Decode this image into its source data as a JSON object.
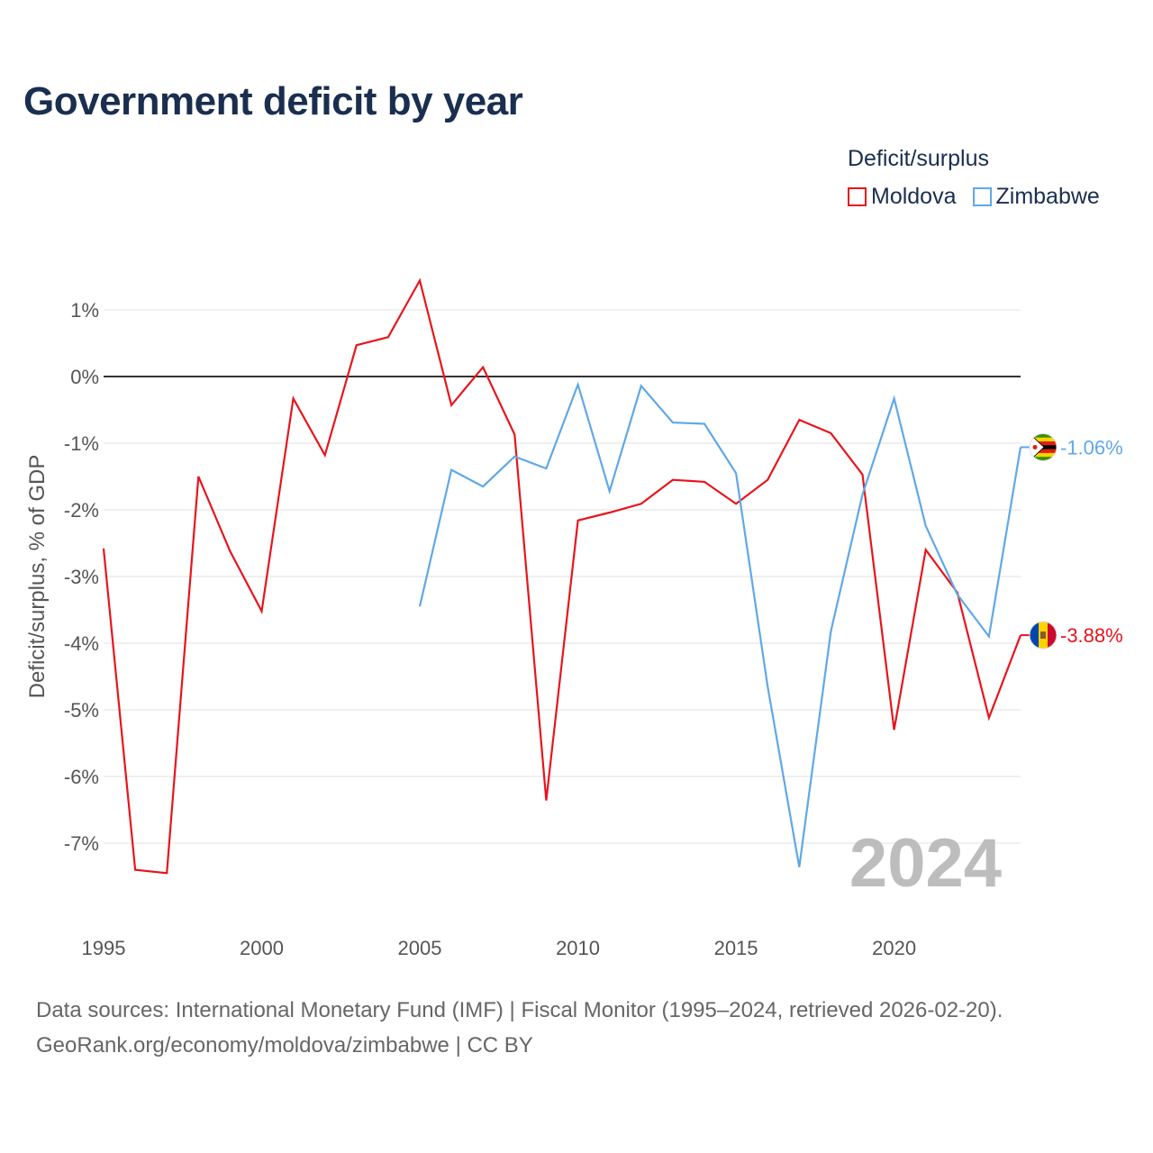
{
  "title": "Government deficit by year",
  "legend": {
    "title": "Deficit/surplus",
    "items": [
      {
        "label": "Moldova",
        "color": "#e8141c"
      },
      {
        "label": "Zimbabwe",
        "color": "#5fa8e8"
      }
    ]
  },
  "footer": {
    "line1": "Data sources: International Monetary Fund (IMF) | Fiscal Monitor (1995–2024, retrieved 2026-02-20).",
    "line2": "GeoRank.org/economy/moldova/zimbabwe | CC BY"
  },
  "chart_data": {
    "type": "line",
    "title": "Government deficit by year",
    "xlabel": "",
    "ylabel": "Deficit/surplus, % of GDP",
    "xlim": [
      1995,
      2024
    ],
    "ylim": [
      -8,
      1.5
    ],
    "x_ticks": [
      1995,
      2000,
      2005,
      2010,
      2015,
      2020
    ],
    "y_ticks": [
      1,
      0,
      -1,
      -2,
      -3,
      -4,
      -5,
      -6,
      -7
    ],
    "y_tick_labels": [
      "1%",
      "0%",
      "-1%",
      "-2%",
      "-3%",
      "-4%",
      "-5%",
      "-6%",
      "-7%"
    ],
    "watermark": "2024",
    "series": [
      {
        "name": "Moldova",
        "color": "#e8141c",
        "end_label": "-3.88%",
        "flag": "moldova-flag",
        "x": [
          1995,
          1996,
          1997,
          1998,
          1999,
          2000,
          2001,
          2002,
          2003,
          2004,
          2005,
          2006,
          2007,
          2008,
          2009,
          2010,
          2011,
          2012,
          2013,
          2014,
          2015,
          2016,
          2017,
          2018,
          2019,
          2020,
          2021,
          2022,
          2023,
          2024
        ],
        "values": [
          -2.58,
          -7.4,
          -7.45,
          -1.5,
          -2.62,
          -3.52,
          -0.33,
          -1.18,
          0.47,
          0.59,
          1.44,
          -0.43,
          0.14,
          -0.87,
          -6.36,
          -2.16,
          -2.04,
          -1.91,
          -1.55,
          -1.58,
          -1.91,
          -1.55,
          -0.65,
          -0.85,
          -1.47,
          -5.3,
          -2.6,
          -3.24,
          -5.12,
          -3.88
        ]
      },
      {
        "name": "Zimbabwe",
        "color": "#5fa8e8",
        "end_label": "-1.06%",
        "flag": "zimbabwe-flag",
        "x": [
          2005,
          2006,
          2007,
          2008,
          2009,
          2010,
          2011,
          2012,
          2013,
          2014,
          2015,
          2016,
          2017,
          2018,
          2019,
          2020,
          2021,
          2022,
          2023,
          2024
        ],
        "values": [
          -3.45,
          -1.4,
          -1.65,
          -1.2,
          -1.38,
          -0.12,
          -1.72,
          -0.14,
          -0.69,
          -0.71,
          -1.45,
          -4.65,
          -7.36,
          -3.82,
          -1.77,
          -0.33,
          -2.24,
          -3.27,
          -3.9,
          -1.06
        ]
      }
    ]
  }
}
